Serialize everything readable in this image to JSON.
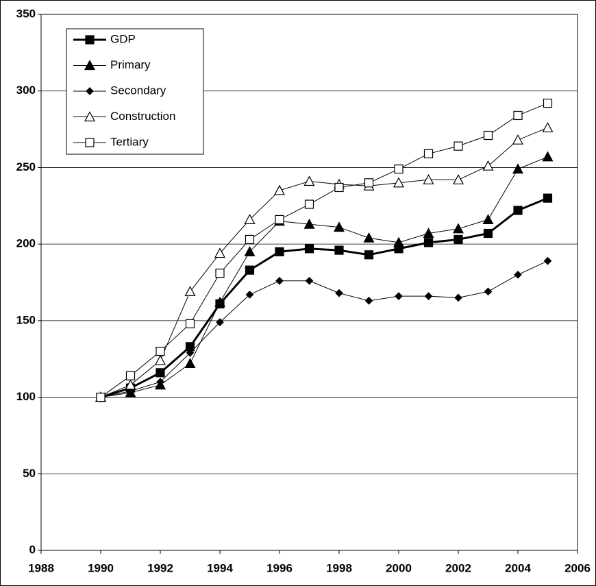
{
  "chart_data": {
    "type": "line",
    "x": [
      1990,
      1991,
      1992,
      1993,
      1994,
      1995,
      1996,
      1997,
      1998,
      1999,
      2000,
      2001,
      2002,
      2003,
      2004,
      2005
    ],
    "xlim": [
      1988,
      2006
    ],
    "xticks": [
      1988,
      1990,
      1992,
      1994,
      1996,
      1998,
      2000,
      2002,
      2004,
      2006
    ],
    "ylim": [
      0,
      350
    ],
    "yticks": [
      0,
      50,
      100,
      150,
      200,
      250,
      300,
      350
    ],
    "grid": true,
    "legend": "upper left",
    "series": [
      {
        "name": "GDP",
        "color": "#000000",
        "marker": "square-filled",
        "line_width": 3,
        "values": [
          100,
          106,
          116,
          133,
          161,
          183,
          195,
          197,
          196,
          193,
          197,
          201,
          203,
          207,
          222,
          230
        ]
      },
      {
        "name": "Primary",
        "color": "#000000",
        "marker": "triangle-filled",
        "line_width": 1,
        "values": [
          100,
          103,
          108,
          122,
          162,
          195,
          215,
          213,
          211,
          204,
          201,
          207,
          210,
          216,
          249,
          257
        ]
      },
      {
        "name": "Secondary",
        "color": "#000000",
        "marker": "diamond-filled",
        "line_width": 1,
        "values": [
          100,
          104,
          110,
          129,
          149,
          167,
          176,
          176,
          168,
          163,
          166,
          166,
          165,
          169,
          180,
          189
        ]
      },
      {
        "name": "Construction",
        "color": "#000000",
        "marker": "triangle-open",
        "line_width": 1,
        "values": [
          100,
          108,
          124,
          169,
          194,
          216,
          235,
          241,
          239,
          238,
          240,
          242,
          242,
          251,
          268,
          276
        ]
      },
      {
        "name": "Tertiary",
        "color": "#000000",
        "marker": "square-open",
        "line_width": 1,
        "values": [
          100,
          114,
          130,
          148,
          181,
          203,
          216,
          226,
          237,
          240,
          249,
          259,
          264,
          271,
          284,
          292
        ]
      }
    ]
  }
}
